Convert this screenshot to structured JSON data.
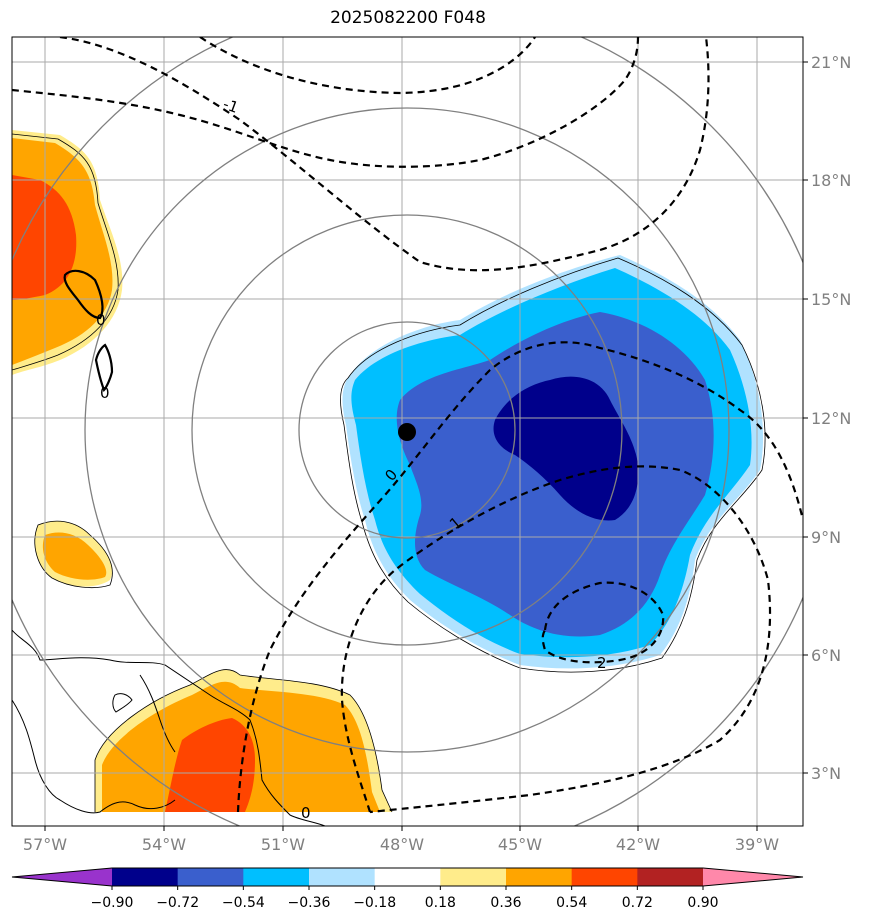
{
  "title": "2025082200 F048",
  "lon_labels": [
    "57°W",
    "54°W",
    "51°W",
    "48°W",
    "45°W",
    "42°W",
    "39°W"
  ],
  "lat_labels": [
    "21°N",
    "18°N",
    "15°N",
    "12°N",
    "9°N",
    "6°N",
    "3°N"
  ],
  "colorbar": {
    "ticks": [
      "−0.90",
      "−0.72",
      "−0.54",
      "−0.36",
      "−0.18",
      "0.18",
      "0.36",
      "0.54",
      "0.72",
      "0.90"
    ],
    "colors": [
      "#9933cc",
      "#00008b",
      "#3a5fcd",
      "#00bfff",
      "#b0e2ff",
      "#ffffff",
      "#ffec8b",
      "#ffa500",
      "#ff4500",
      "#b22222",
      "#ff88aa"
    ]
  },
  "contour_labels": {
    "neg_one": "-1",
    "zero_west": "0",
    "zero_south": "0",
    "zero_center": "0",
    "one": "1",
    "two": "2"
  },
  "colors": {
    "grid": "#aaaaaa",
    "range_rings": "#808080",
    "center_marker": "#000000"
  }
}
